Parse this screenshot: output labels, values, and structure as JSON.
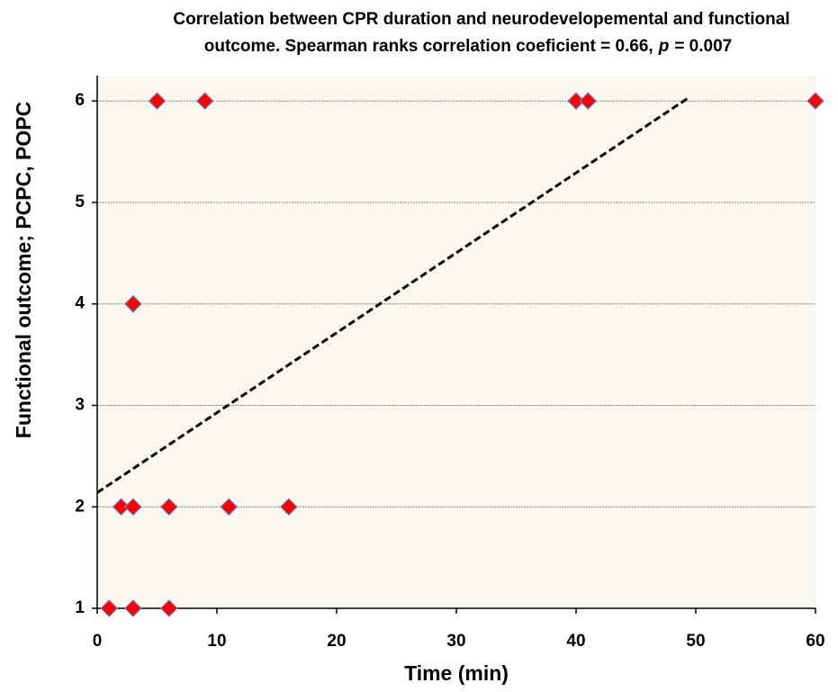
{
  "chart_data": {
    "type": "scatter",
    "title": [
      "Correlation between CPR duration and neurodevelopemental and functional",
      "outcome. Spearman ranks correlation coeficient = 0.66,",
      "p",
      "= 0.007"
    ],
    "x_label": "Time (min)",
    "y_label": "Functional outcome; PCPC, POPC",
    "x": [
      1,
      3,
      6,
      2,
      3,
      6,
      11,
      16,
      3,
      5,
      9,
      40,
      41,
      60
    ],
    "values": [
      1,
      1,
      1,
      2,
      2,
      2,
      2,
      2,
      4,
      6,
      6,
      6,
      6,
      6
    ],
    "color": "#ff0000",
    "trendline": {
      "x": [
        0,
        49.5
      ],
      "y": [
        2.14,
        6.04
      ]
    },
    "xlim": [
      0,
      60
    ],
    "xticks": [
      0,
      10,
      20,
      30,
      40,
      50,
      60
    ],
    "ylim": [
      1,
      6.25
    ],
    "yticks": [
      1,
      2,
      3,
      4,
      5,
      6
    ],
    "grid": true
  }
}
